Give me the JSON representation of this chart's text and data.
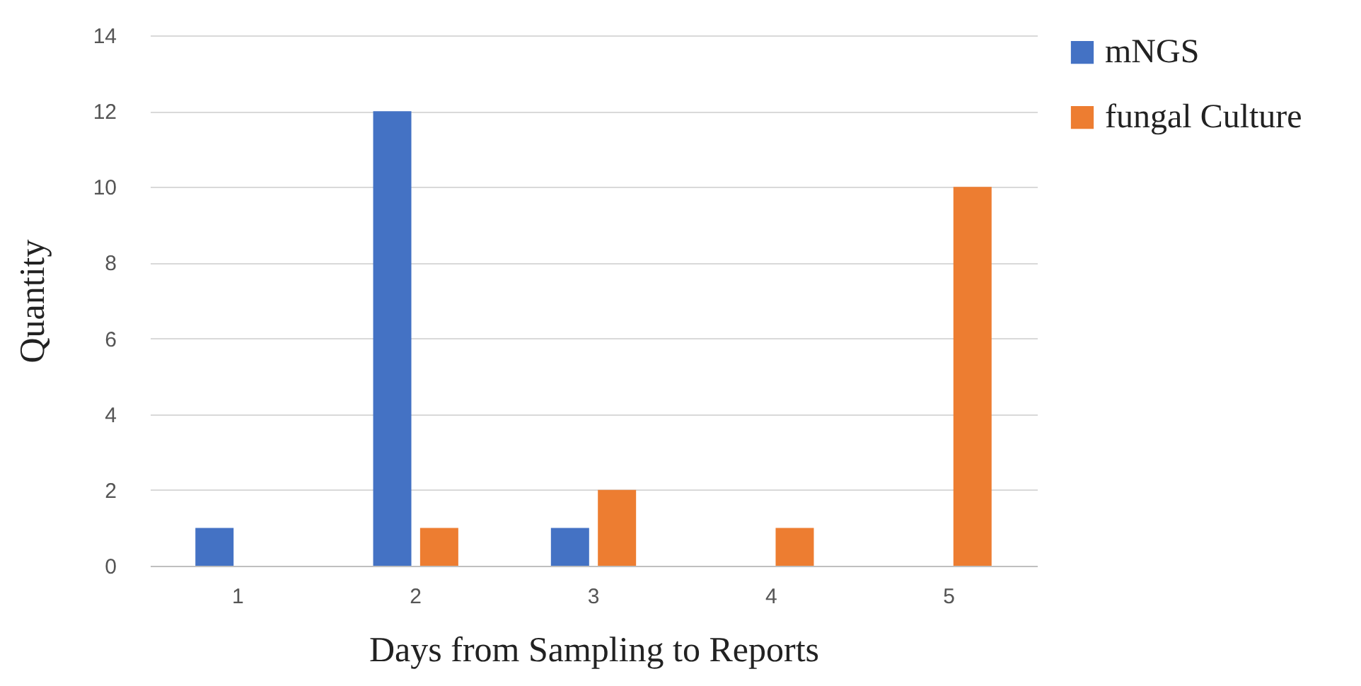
{
  "chart_data": {
    "type": "bar",
    "xlabel": "Days from Sampling to Reports",
    "ylabel": "Quantity",
    "categories": [
      "1",
      "2",
      "3",
      "4",
      "5"
    ],
    "series": [
      {
        "name": "mNGS",
        "color": "#4472c4",
        "values": [
          1,
          12,
          1,
          0,
          0
        ]
      },
      {
        "name": "fungal Culture",
        "color": "#ed7d31",
        "values": [
          0,
          1,
          2,
          1,
          10
        ]
      }
    ],
    "ylim": [
      0,
      14
    ],
    "yticks": [
      0,
      2,
      4,
      6,
      8,
      10,
      12,
      14
    ],
    "grid": "y",
    "legend": "right"
  }
}
